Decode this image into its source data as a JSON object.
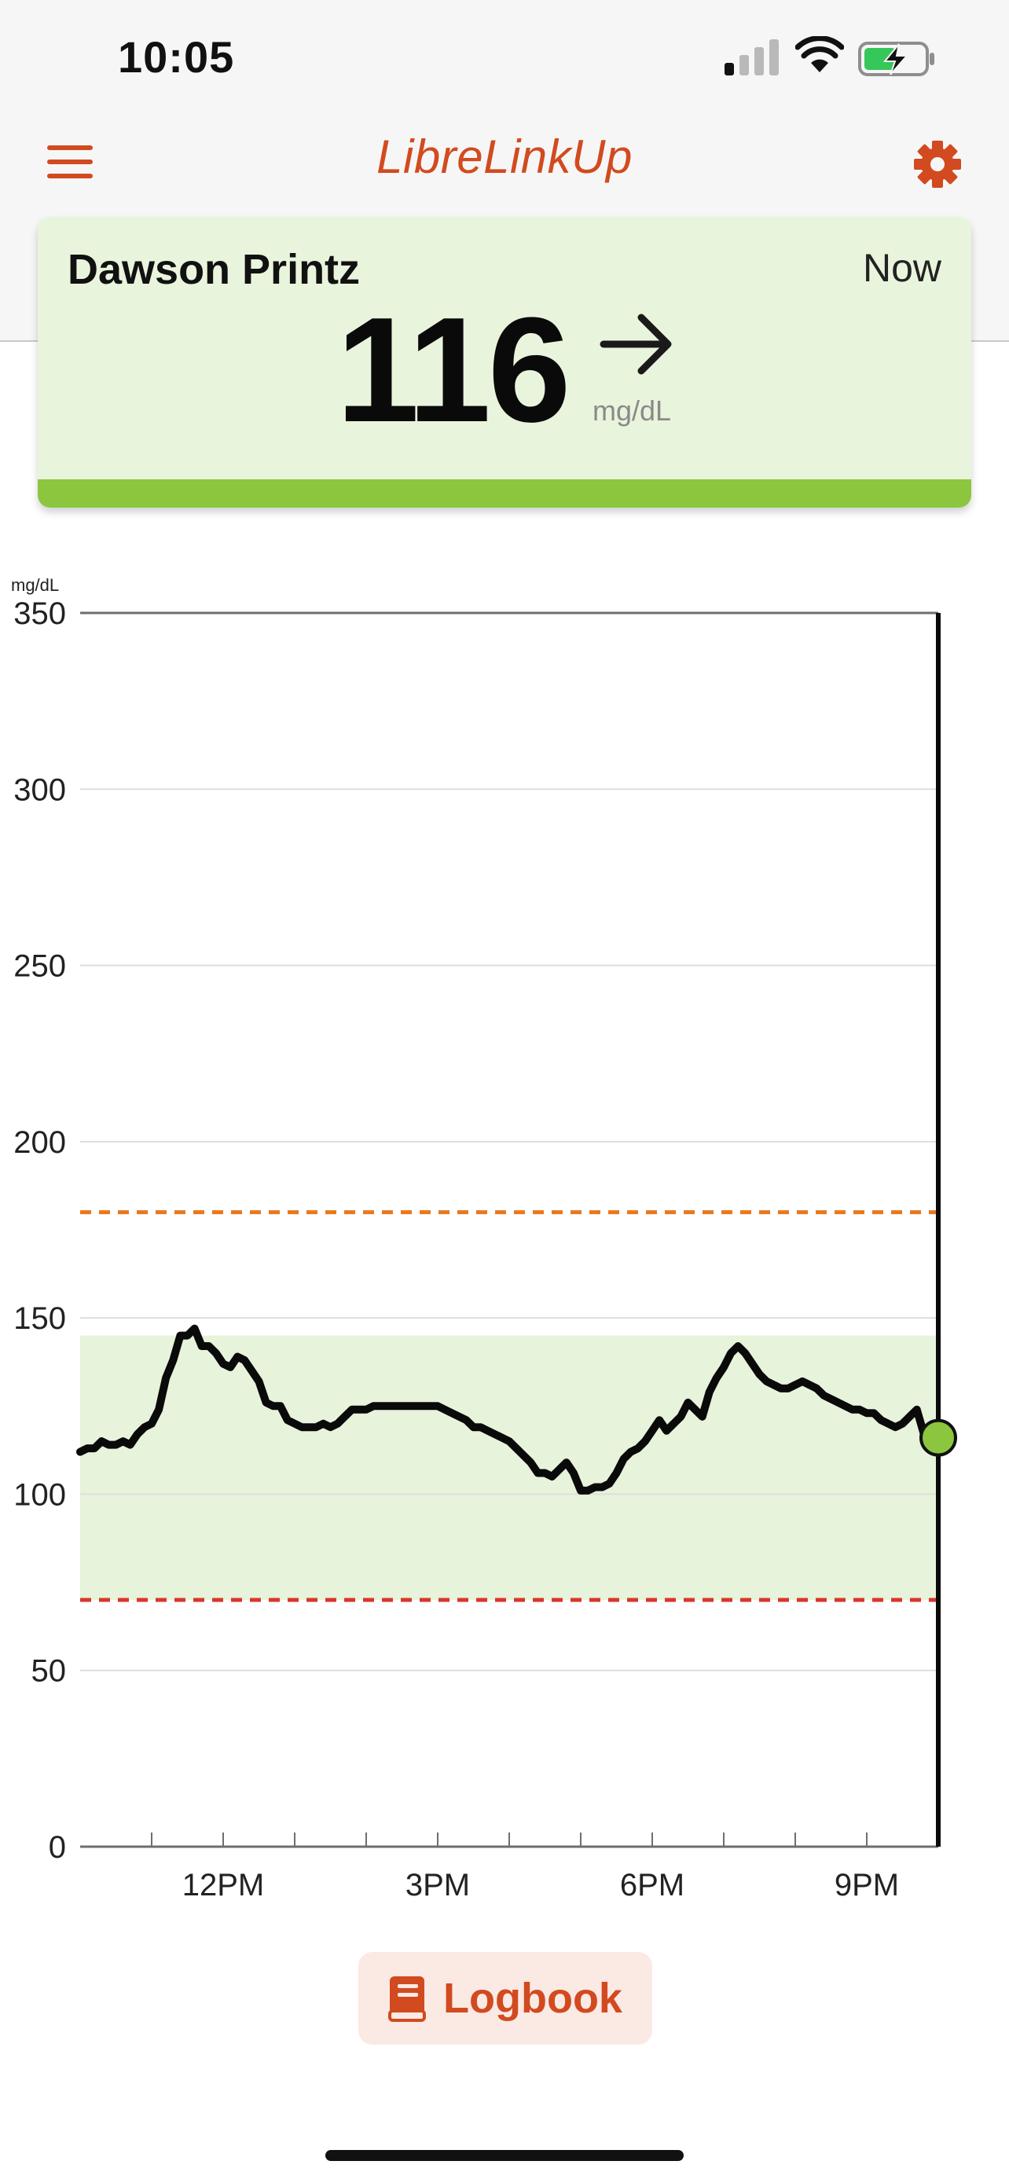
{
  "status_bar": {
    "time": "10:05",
    "icons": [
      "signal-icon",
      "wifi-icon",
      "battery-charging-icon"
    ]
  },
  "header": {
    "title": "LibreLinkUp",
    "menu_icon": "menu-icon",
    "settings_icon": "gear-icon"
  },
  "reading": {
    "name": "Dawson Printz",
    "time_label": "Now",
    "value": "116",
    "unit": "mg/dL",
    "trend_icon": "arrow-right-icon",
    "status_color": "#8cc63f",
    "background_color": "#e9f4dc"
  },
  "chart_data": {
    "type": "line",
    "ylabel": "mg/dL",
    "ylim": [
      0,
      350
    ],
    "yticks": [
      "0",
      "50",
      "100",
      "150",
      "200",
      "250",
      "300",
      "350"
    ],
    "xlim": [
      10.0,
      22.0
    ],
    "xticks": [
      {
        "label": "12PM",
        "hour": 12
      },
      {
        "label": "3PM",
        "hour": 15
      },
      {
        "label": "6PM",
        "hour": 18
      },
      {
        "label": "9PM",
        "hour": 21
      }
    ],
    "target_range": [
      70,
      145
    ],
    "high_threshold": 180,
    "low_threshold": 70,
    "colors": {
      "line": "#0a0a0a",
      "target_band": "#e7f3da",
      "high": "#e8781e",
      "low": "#d9362b",
      "current_point": "#8cc63f"
    },
    "current_reading": {
      "hour": 22.0,
      "value": 116
    },
    "grid": true,
    "series": [
      {
        "points": [
          [
            10.0,
            112
          ],
          [
            10.1,
            113
          ],
          [
            10.2,
            113
          ],
          [
            10.3,
            115
          ],
          [
            10.4,
            114
          ],
          [
            10.5,
            114
          ],
          [
            10.6,
            115
          ],
          [
            10.7,
            114
          ],
          [
            10.8,
            117
          ],
          [
            10.9,
            119
          ],
          [
            11.0,
            120
          ],
          [
            11.1,
            124
          ],
          [
            11.2,
            133
          ],
          [
            11.3,
            138
          ],
          [
            11.4,
            145
          ],
          [
            11.5,
            145
          ],
          [
            11.6,
            147
          ],
          [
            11.7,
            142
          ],
          [
            11.8,
            142
          ],
          [
            11.9,
            140
          ],
          [
            12.0,
            137
          ],
          [
            12.1,
            136
          ],
          [
            12.2,
            139
          ],
          [
            12.3,
            138
          ],
          [
            12.4,
            135
          ],
          [
            12.5,
            132
          ],
          [
            12.6,
            126
          ],
          [
            12.7,
            125
          ],
          [
            12.8,
            125
          ],
          [
            12.9,
            121
          ],
          [
            13.0,
            120
          ],
          [
            13.1,
            119
          ],
          [
            13.2,
            119
          ],
          [
            13.3,
            119
          ],
          [
            13.4,
            120
          ],
          [
            13.5,
            119
          ],
          [
            13.6,
            120
          ],
          [
            13.7,
            122
          ],
          [
            13.8,
            124
          ],
          [
            13.9,
            124
          ],
          [
            14.0,
            124
          ],
          [
            14.1,
            125
          ],
          [
            14.3,
            125
          ],
          [
            14.5,
            125
          ],
          [
            14.7,
            125
          ],
          [
            14.8,
            125
          ],
          [
            15.0,
            125
          ],
          [
            15.1,
            124
          ],
          [
            15.2,
            123
          ],
          [
            15.3,
            122
          ],
          [
            15.4,
            121
          ],
          [
            15.5,
            119
          ],
          [
            15.6,
            119
          ],
          [
            15.7,
            118
          ],
          [
            15.8,
            117
          ],
          [
            16.0,
            115
          ],
          [
            16.1,
            113
          ],
          [
            16.2,
            111
          ],
          [
            16.3,
            109
          ],
          [
            16.4,
            106
          ],
          [
            16.5,
            106
          ],
          [
            16.6,
            105
          ],
          [
            16.7,
            107
          ],
          [
            16.8,
            109
          ],
          [
            16.9,
            106
          ],
          [
            17.0,
            101
          ],
          [
            17.1,
            101
          ],
          [
            17.2,
            102
          ],
          [
            17.3,
            102
          ],
          [
            17.4,
            103
          ],
          [
            17.5,
            106
          ],
          [
            17.6,
            110
          ],
          [
            17.7,
            112
          ],
          [
            17.8,
            113
          ],
          [
            17.9,
            115
          ],
          [
            18.0,
            118
          ],
          [
            18.1,
            121
          ],
          [
            18.2,
            118
          ],
          [
            18.3,
            120
          ],
          [
            18.4,
            122
          ],
          [
            18.5,
            126
          ],
          [
            18.6,
            124
          ],
          [
            18.7,
            122
          ],
          [
            18.8,
            129
          ],
          [
            18.9,
            133
          ],
          [
            19.0,
            136
          ],
          [
            19.1,
            140
          ],
          [
            19.2,
            142
          ],
          [
            19.3,
            140
          ],
          [
            19.4,
            137
          ],
          [
            19.5,
            134
          ],
          [
            19.6,
            132
          ],
          [
            19.7,
            131
          ],
          [
            19.8,
            130
          ],
          [
            19.9,
            130
          ],
          [
            20.0,
            131
          ],
          [
            20.1,
            132
          ],
          [
            20.2,
            131
          ],
          [
            20.3,
            130
          ],
          [
            20.4,
            128
          ],
          [
            20.5,
            127
          ],
          [
            20.6,
            126
          ],
          [
            20.7,
            125
          ],
          [
            20.8,
            124
          ],
          [
            20.9,
            124
          ],
          [
            21.0,
            123
          ],
          [
            21.1,
            123
          ],
          [
            21.2,
            121
          ],
          [
            21.3,
            120
          ],
          [
            21.4,
            119
          ],
          [
            21.5,
            120
          ],
          [
            21.6,
            122
          ],
          [
            21.7,
            124
          ],
          [
            21.8,
            117
          ],
          [
            21.9,
            114
          ],
          [
            22.0,
            116
          ]
        ]
      }
    ]
  },
  "logbook": {
    "label": "Logbook",
    "icon": "book-icon"
  }
}
